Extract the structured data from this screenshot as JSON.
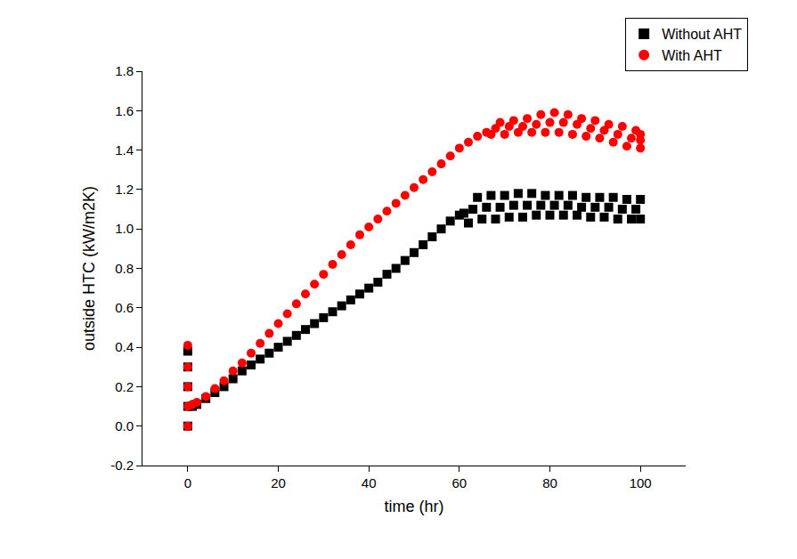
{
  "chart_data": {
    "type": "scatter",
    "x_label": "time (hr)",
    "y_label": "outside HTC (kW/m2K)",
    "xlim": [
      -10,
      110
    ],
    "xticks": [
      0,
      20,
      40,
      60,
      80,
      100
    ],
    "ylim": [
      -0.2,
      1.8
    ],
    "yticks": [
      {
        "value": -0.2,
        "label": "-0.2"
      },
      {
        "value": 0.0,
        "label": "0.0"
      },
      {
        "value": 0.2,
        "label": "0.2"
      },
      {
        "value": 0.4,
        "label": "0.4"
      },
      {
        "value": 0.6,
        "label": "0.6"
      },
      {
        "value": 0.8,
        "label": "0.8"
      },
      {
        "value": 1.0,
        "label": "1.0"
      },
      {
        "value": 1.2,
        "label": "1.2"
      },
      {
        "value": 1.4,
        "label": "1.4"
      },
      {
        "value": 1.6,
        "label": "1.6"
      },
      {
        "value": 1.8,
        "label": "1.8"
      }
    ],
    "grid": false,
    "legend": "top right",
    "series": [
      {
        "name": "Without AHT",
        "color": "#000000",
        "marker": "square",
        "x": [
          0,
          0,
          0,
          0,
          0,
          1,
          2,
          4,
          6,
          8,
          10,
          12,
          14,
          16,
          18,
          20,
          22,
          24,
          26,
          28,
          30,
          32,
          34,
          36,
          38,
          40,
          42,
          44,
          46,
          48,
          50,
          52,
          54,
          56,
          58,
          60,
          61,
          62,
          63,
          64,
          65,
          66,
          67,
          68,
          69,
          70,
          71,
          72,
          73,
          74,
          75,
          76,
          77,
          78,
          79,
          80,
          81,
          82,
          83,
          84,
          85,
          86,
          87,
          88,
          89,
          90,
          91,
          92,
          93,
          94,
          95,
          96,
          97,
          98,
          99,
          100,
          100
        ],
        "values": [
          0,
          0.1,
          0.2,
          0.3,
          0.38,
          0.1,
          0.11,
          0.14,
          0.17,
          0.2,
          0.24,
          0.28,
          0.31,
          0.34,
          0.37,
          0.4,
          0.43,
          0.46,
          0.49,
          0.52,
          0.55,
          0.58,
          0.61,
          0.64,
          0.67,
          0.7,
          0.73,
          0.77,
          0.8,
          0.84,
          0.88,
          0.92,
          0.96,
          1.0,
          1.04,
          1.07,
          1.08,
          1.03,
          1.1,
          1.16,
          1.05,
          1.11,
          1.17,
          1.05,
          1.11,
          1.17,
          1.06,
          1.12,
          1.18,
          1.06,
          1.12,
          1.18,
          1.07,
          1.12,
          1.17,
          1.07,
          1.12,
          1.17,
          1.07,
          1.12,
          1.17,
          1.07,
          1.11,
          1.16,
          1.06,
          1.11,
          1.16,
          1.06,
          1.11,
          1.16,
          1.05,
          1.1,
          1.15,
          1.05,
          1.1,
          1.15,
          1.05
        ]
      },
      {
        "name": "With AHT",
        "color": "#ff0000",
        "marker": "circle",
        "x": [
          0,
          0,
          0,
          0,
          0,
          1,
          2,
          4,
          6,
          8,
          10,
          12,
          14,
          16,
          18,
          20,
          22,
          24,
          26,
          28,
          30,
          32,
          34,
          36,
          38,
          40,
          42,
          44,
          46,
          48,
          50,
          52,
          54,
          56,
          58,
          60,
          62,
          64,
          66,
          67,
          68,
          69,
          70,
          71,
          72,
          73,
          74,
          75,
          76,
          77,
          78,
          79,
          80,
          81,
          82,
          83,
          84,
          85,
          86,
          87,
          88,
          89,
          90,
          91,
          92,
          93,
          94,
          95,
          96,
          97,
          98,
          99,
          100,
          100,
          100
        ],
        "values": [
          0,
          0.1,
          0.2,
          0.3,
          0.41,
          0.11,
          0.12,
          0.15,
          0.19,
          0.23,
          0.28,
          0.32,
          0.37,
          0.42,
          0.47,
          0.52,
          0.57,
          0.62,
          0.67,
          0.72,
          0.77,
          0.82,
          0.87,
          0.92,
          0.97,
          1.01,
          1.05,
          1.09,
          1.13,
          1.17,
          1.21,
          1.25,
          1.29,
          1.33,
          1.37,
          1.41,
          1.44,
          1.47,
          1.49,
          1.48,
          1.51,
          1.54,
          1.48,
          1.52,
          1.55,
          1.49,
          1.52,
          1.56,
          1.49,
          1.53,
          1.58,
          1.49,
          1.54,
          1.59,
          1.49,
          1.54,
          1.58,
          1.48,
          1.53,
          1.56,
          1.47,
          1.51,
          1.55,
          1.46,
          1.5,
          1.53,
          1.44,
          1.48,
          1.52,
          1.42,
          1.46,
          1.5,
          1.41,
          1.45,
          1.48
        ]
      }
    ]
  }
}
